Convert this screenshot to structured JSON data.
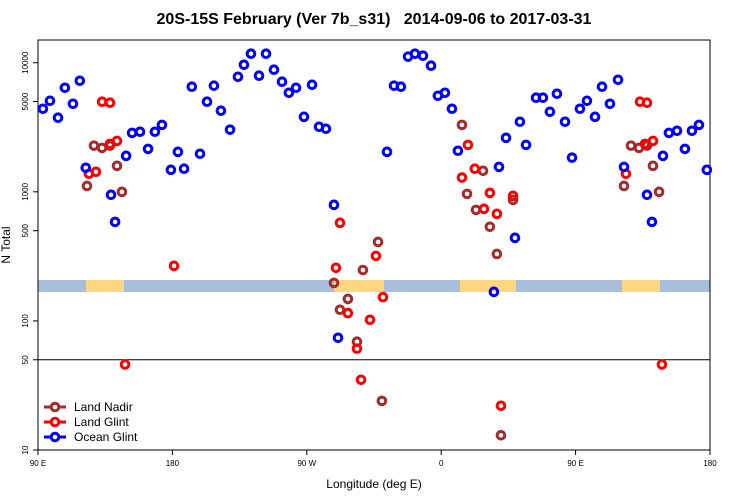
{
  "chart_data": {
    "type": "scatter",
    "title": "20S-15S February (Ver 7b_s31)   2014-09-06 to 2017-03-31",
    "x_label": "Longitude (deg E)",
    "y_label": "N Total",
    "log_y": true,
    "legend": "bottom-left",
    "hline": 50,
    "xlim": [
      90,
      540
    ],
    "ylim": [
      10,
      15000
    ],
    "xticks": [
      {
        "value": 90,
        "label": "90 E"
      },
      180,
      {
        "value": 270,
        "label": "90 W"
      },
      {
        "value": 360,
        "label": "0"
      },
      {
        "value": 450,
        "label": "90 E"
      },
      {
        "value": 540,
        "label": "180"
      }
    ],
    "yticks": [
      10,
      50,
      100,
      500,
      1000,
      5000,
      10000
    ],
    "series": [
      {
        "name": "Land Nadir",
        "color": "#a52a2a",
        "x": [
          122.8,
          127.5,
          132.9,
          138.2,
          142.9,
          146.2,
          288.2,
          292.2,
          297.5,
          303.6,
          307.6,
          317.7,
          320.3,
          373.9,
          377.3,
          383.3,
          388,
          392.6,
          397.3,
          400,
          408.1,
          482.4,
          487.1,
          492.4,
          497.8,
          501.8,
          505.9
        ],
        "values": [
          1110,
          2280,
          2190,
          2280,
          1590,
          1000,
          197,
          122,
          148,
          69,
          248,
          409,
          24,
          3300,
          964,
          724,
          1455,
          536,
          330,
          13,
          867,
          1110,
          2280,
          2190,
          2280,
          1590,
          1000
        ]
      },
      {
        "name": "Land Glint",
        "color": "#ff0000",
        "x": [
          124.1,
          128.8,
          132.9,
          138.2,
          138.2,
          142.9,
          148.3,
          181.1,
          289.5,
          292.2,
          297.5,
          303.6,
          306.3,
          312.3,
          316.3,
          321,
          373.9,
          377.9,
          382.5,
          388.6,
          392.6,
          397.3,
          400,
          408.1,
          483.7,
          493.1,
          497.8,
          496.4,
          501.8,
          507.8
        ],
        "values": [
          1380,
          1430,
          4990,
          4900,
          2350,
          2480,
          46,
          267,
          258,
          575,
          115,
          61,
          35,
          102,
          319,
          153,
          1290,
          2310,
          1510,
          738,
          981,
          675,
          22,
          931,
          1380,
          4990,
          4900,
          2350,
          2480,
          46
        ]
      },
      {
        "name": "Ocean Glint",
        "color": "#0000ff",
        "x": [
          93.3,
          98,
          103.4,
          108,
          113.4,
          118,
          122,
          138.9,
          141.6,
          149,
          153,
          158.3,
          163.7,
          168.3,
          173,
          179,
          183.7,
          187.8,
          193,
          198.5,
          203.2,
          207.8,
          212.5,
          218.6,
          223.9,
          227.9,
          232.6,
          238,
          242.7,
          248,
          253.4,
          258,
          262.8,
          268.1,
          273.5,
          278.2,
          282.8,
          288.2,
          290.9,
          323.7,
          328.4,
          333,
          337.8,
          342.4,
          347.8,
          353.2,
          357.8,
          362.5,
          367.2,
          371.2,
          395.3,
          398.7,
          403.4,
          409.4,
          412.7,
          416.8,
          423.5,
          428.1,
          432.8,
          437.5,
          442.9,
          447.6,
          452.9,
          457.6,
          463,
          467.7,
          473,
          478.4,
          482.4,
          497.8,
          501.1,
          508.5,
          512.5,
          517.9,
          523.2,
          527.9,
          532.6,
          537.9
        ],
        "values": [
          4400,
          5070,
          3750,
          6400,
          4810,
          7250,
          1535,
          948,
          585,
          1900,
          2860,
          2920,
          2150,
          2920,
          3300,
          1480,
          2040,
          1510,
          6520,
          1970,
          4990,
          6640,
          4250,
          3030,
          7780,
          9640,
          11750,
          7930,
          11750,
          8830,
          7130,
          5850,
          6400,
          3810,
          6750,
          3190,
          3080,
          793,
          74,
          2040,
          6640,
          6520,
          11140,
          11750,
          11330,
          9480,
          5550,
          5850,
          4400,
          2080,
          168,
          1560,
          2620,
          440,
          3490,
          2310,
          5360,
          5360,
          4170,
          5750,
          3490,
          1840,
          4400,
          5070,
          3810,
          6520,
          4810,
          7380,
          1560,
          948,
          585,
          1900,
          2860,
          2970,
          2150,
          2970,
          3300,
          1480
        ]
      }
    ]
  }
}
